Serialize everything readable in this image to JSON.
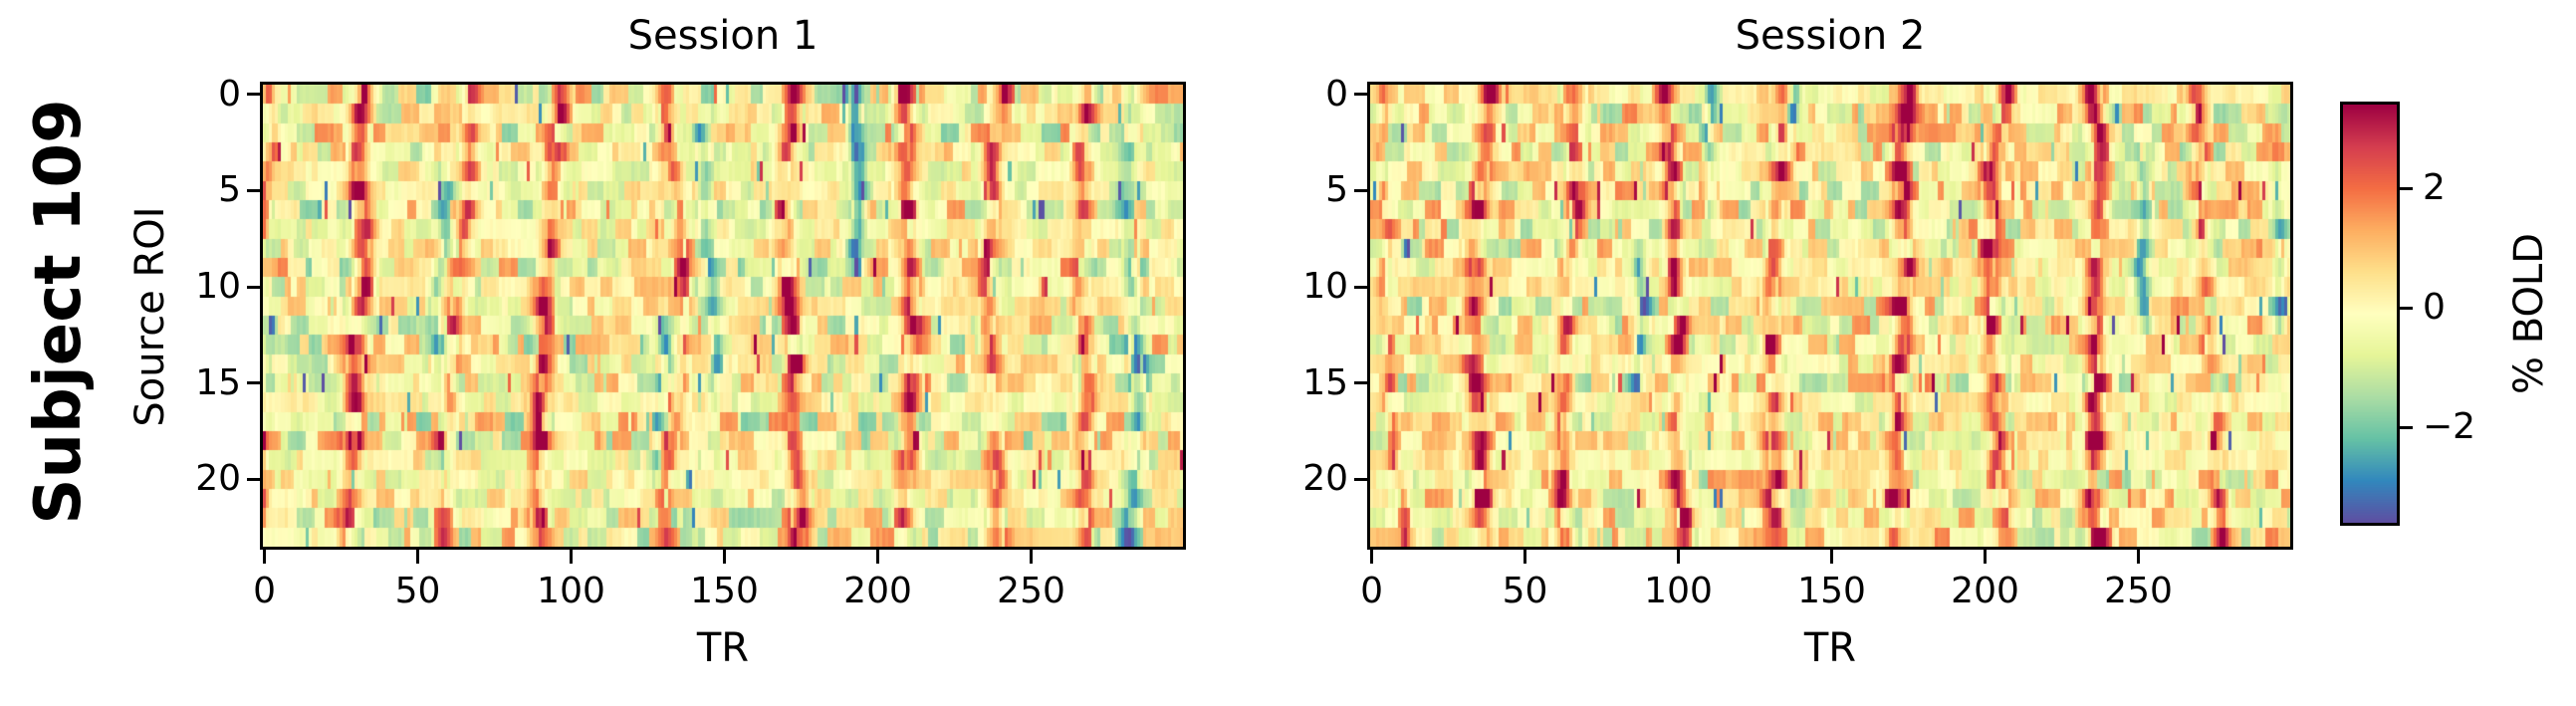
{
  "figure": {
    "subject_label": "Subject 109"
  },
  "axes": {
    "xlabel": "TR",
    "ylabel": "Source ROI",
    "x_ticks": [
      0,
      50,
      100,
      150,
      200,
      250
    ],
    "y_ticks": [
      0,
      5,
      10,
      15,
      20
    ]
  },
  "colorbar": {
    "label": "% BOLD",
    "ticks": [
      {
        "value": 2,
        "label": "2"
      },
      {
        "value": 0,
        "label": "0"
      },
      {
        "value": -2,
        "label": "−2"
      }
    ]
  },
  "chart_data": {
    "type": "heatmap",
    "title": "Subject 109",
    "xlabel": "TR",
    "ylabel": "Source ROI",
    "value_label": "% BOLD",
    "n_rois": 24,
    "n_trs": 300,
    "x_range": [
      0,
      300
    ],
    "y_range": [
      0,
      24
    ],
    "vmin": -3.6,
    "vmax": 3.4,
    "grid": false,
    "colormap": {
      "name": "Spectral_r",
      "anchors_low_to_high": [
        "#5e4fa2",
        "#3288bd",
        "#66c2a5",
        "#abdda4",
        "#e6f598",
        "#ffffbf",
        "#fee08b",
        "#fdae61",
        "#f46d43",
        "#d53e4f",
        "#9e0142"
      ]
    },
    "sessions": [
      {
        "name": "Session 1",
        "seed": 109,
        "baseline_bias": -0.12,
        "events": [
          {
            "tr": 1,
            "amp": 2.7,
            "w": 1.1
          },
          {
            "tr": 34,
            "amp": 3.0,
            "w": 2.2
          },
          {
            "tr": 66,
            "amp": 2.2,
            "w": 1.9
          },
          {
            "tr": 98,
            "amp": 2.8,
            "w": 2.1
          },
          {
            "tr": 130,
            "amp": 2.2,
            "w": 1.8
          },
          {
            "tr": 173,
            "amp": 3.0,
            "w": 2.2
          },
          {
            "tr": 208,
            "amp": 2.9,
            "w": 2.3
          },
          {
            "tr": 240,
            "amp": 2.8,
            "w": 2.0
          },
          {
            "tr": 268,
            "amp": 2.3,
            "w": 1.9
          }
        ],
        "dips": [
          {
            "tr": 55,
            "amp": -1.7,
            "w": 1.6,
            "rows": [
              4,
              20
            ]
          },
          {
            "tr": 126,
            "amp": -1.9,
            "w": 1.4,
            "rows": [
              12,
              20
            ]
          },
          {
            "tr": 145,
            "amp": -1.6,
            "w": 1.5,
            "rows": [
              2,
              16
            ]
          },
          {
            "tr": 191,
            "amp": -2.7,
            "w": 1.5,
            "rows": [
              0,
              9
            ]
          },
          {
            "tr": 283,
            "amp": -1.9,
            "w": 1.9,
            "rows": [
              0,
              23
            ]
          }
        ]
      },
      {
        "name": "Session 2",
        "seed": 209,
        "baseline_bias": 0.05,
        "events": [
          {
            "tr": 2,
            "amp": 1.7,
            "w": 1.1
          },
          {
            "tr": 38,
            "amp": 3.2,
            "w": 2.2
          },
          {
            "tr": 67,
            "amp": 2.5,
            "w": 1.9
          },
          {
            "tr": 97,
            "amp": 2.6,
            "w": 1.8
          },
          {
            "tr": 135,
            "amp": 2.6,
            "w": 2.0
          },
          {
            "tr": 175,
            "amp": 3.1,
            "w": 2.0
          },
          {
            "tr": 208,
            "amp": 2.7,
            "w": 2.0
          },
          {
            "tr": 236,
            "amp": 3.3,
            "w": 2.2
          },
          {
            "tr": 270,
            "amp": 2.6,
            "w": 2.0
          }
        ],
        "dips": [
          {
            "tr": 88,
            "amp": -1.8,
            "w": 1.6,
            "rows": [
              8,
              15
            ]
          },
          {
            "tr": 110,
            "amp": -2.2,
            "w": 1.4,
            "rows": [
              0,
              6
            ]
          },
          {
            "tr": 137,
            "amp": -2.5,
            "w": 1.1,
            "rows": [
              0,
              3
            ]
          },
          {
            "tr": 252,
            "amp": -2.2,
            "w": 1.7,
            "rows": [
              3,
              12
            ]
          },
          {
            "tr": 295,
            "amp": -1.6,
            "w": 1.4,
            "rows": [
              4,
              12
            ]
          }
        ]
      }
    ]
  }
}
